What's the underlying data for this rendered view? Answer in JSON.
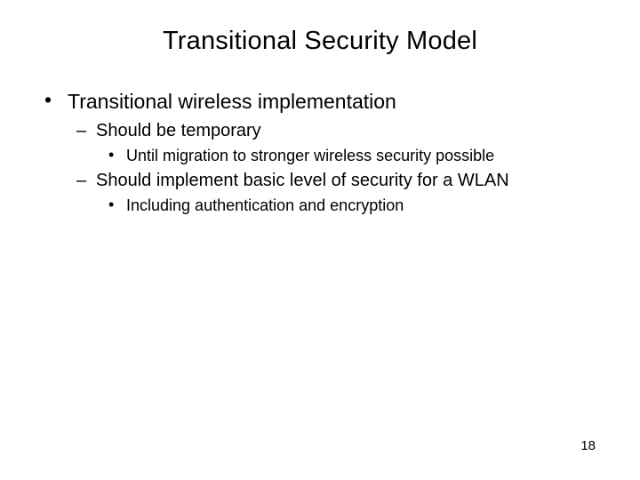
{
  "title": "Transitional Security Model",
  "content": {
    "lvl1": {
      "item0": {
        "text": "Transitional wireless implementation",
        "lvl2": {
          "item0": {
            "text": "Should be temporary",
            "lvl3": {
              "item0": {
                "text": "Until migration to stronger wireless security possible"
              }
            }
          },
          "item1": {
            "text": "Should implement basic level of security for a WLAN",
            "lvl3": {
              "item0": {
                "text": "Including authentication and encryption"
              }
            }
          }
        }
      }
    }
  },
  "page_number": "18",
  "colors": {
    "background": "#ffffff",
    "text": "#000000"
  },
  "typography": {
    "title_fontsize": 29,
    "lvl1_fontsize": 23,
    "lvl2_fontsize": 20,
    "lvl3_fontsize": 18,
    "pagenum_fontsize": 15,
    "font_family": "Arial"
  }
}
